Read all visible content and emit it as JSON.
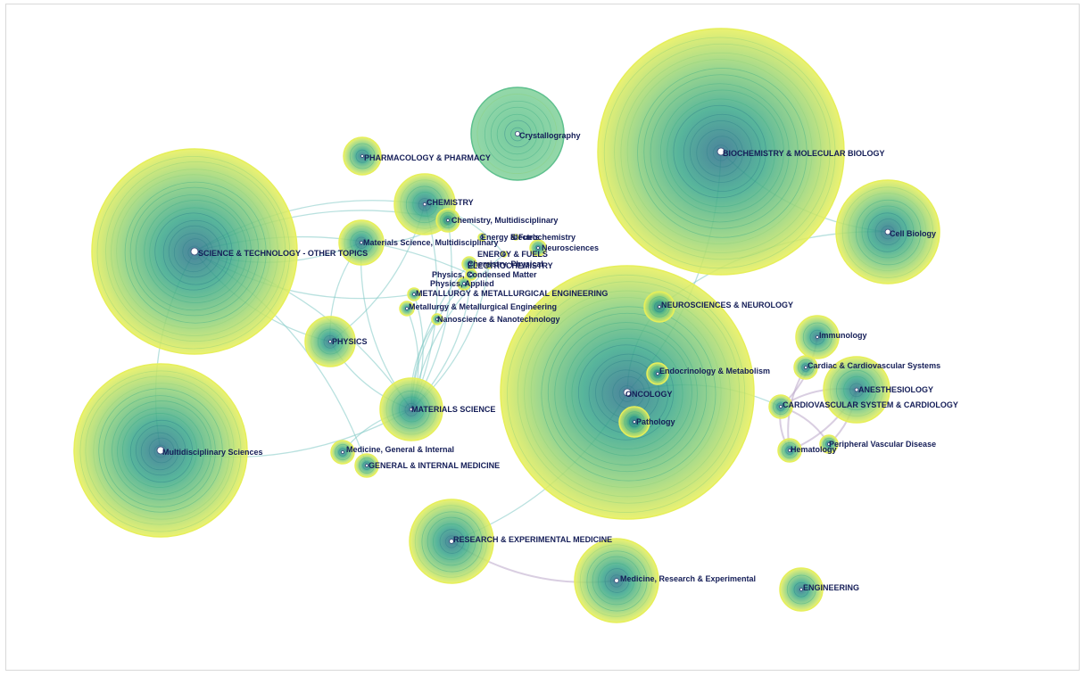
{
  "colors": {
    "outer_ring": "#e6ef5a",
    "mid_ring": "#8fd17a",
    "inner_ring": "#3fae86",
    "core": "#2c7f8a",
    "crystallography_fill": "#7fd2a0",
    "edge_teal": "#7fc9c4",
    "edge_purple": "#b9a6c9",
    "label": "#141d57"
  },
  "nodes": [
    {
      "key": "biochem",
      "label": "BIOCHEMISTRY & MOLECULAR BIOLOGY",
      "icon": "cluster-node"
    },
    {
      "key": "oncology",
      "label": "ONCOLOGY",
      "icon": "cluster-node"
    },
    {
      "key": "scitech",
      "label": "SCIENCE & TECHNOLOGY - OTHER TOPICS",
      "icon": "cluster-node"
    },
    {
      "key": "multisci",
      "label": "Multidisciplinary Sciences",
      "icon": "cluster-node"
    },
    {
      "key": "crystal",
      "label": "Crystallography",
      "icon": "cluster-node"
    },
    {
      "key": "cellbio",
      "label": "Cell Biology",
      "icon": "cluster-node"
    },
    {
      "key": "pharma",
      "label": "PHARMACOLOGY & PHARMACY",
      "icon": "cluster-node"
    },
    {
      "key": "chemistry",
      "label": "CHEMISTRY",
      "icon": "cluster-node"
    },
    {
      "key": "chemmulti",
      "label": "Chemistry, Multidisciplinary",
      "icon": "cluster-node"
    },
    {
      "key": "matscimulti",
      "label": "Materials Science, Multidisciplinary",
      "icon": "cluster-node"
    },
    {
      "key": "energyfuels2",
      "label": "Energy & Fuels",
      "icon": "cluster-node"
    },
    {
      "key": "electrochem",
      "label": "Electrochemistry",
      "icon": "cluster-node"
    },
    {
      "key": "neurosci",
      "label": "Neurosciences",
      "icon": "cluster-node"
    },
    {
      "key": "energyfuels",
      "label": "ENERGY & FUELS",
      "icon": "cluster-node"
    },
    {
      "key": "chemphys",
      "label": "Chemistry, Physical",
      "icon": "cluster-node"
    },
    {
      "key": "electrochemU",
      "label": "ELECTROCHEMISTRY",
      "icon": "cluster-node"
    },
    {
      "key": "physcond",
      "label": "Physics, Condensed Matter",
      "icon": "cluster-node"
    },
    {
      "key": "physapplied",
      "label": "Physics, Applied",
      "icon": "cluster-node"
    },
    {
      "key": "metallurgyU",
      "label": "METALLURGY & METALLURGICAL ENGINEERING",
      "icon": "cluster-node"
    },
    {
      "key": "metallurgy",
      "label": "Metallurgy & Metallurgical Engineering",
      "icon": "cluster-node"
    },
    {
      "key": "nano",
      "label": "Nanoscience & Nanotechnology",
      "icon": "cluster-node"
    },
    {
      "key": "physics",
      "label": "PHYSICS",
      "icon": "cluster-node"
    },
    {
      "key": "neurology",
      "label": "NEUROSCIENCES & NEUROLOGY",
      "icon": "cluster-node"
    },
    {
      "key": "immunology",
      "label": "Immunology",
      "icon": "cluster-node"
    },
    {
      "key": "endocrin",
      "label": "Endocrinology & Metabolism",
      "icon": "cluster-node"
    },
    {
      "key": "cardiac",
      "label": "Cardiac & Cardiovascular Systems",
      "icon": "cluster-node"
    },
    {
      "key": "anesth",
      "label": "ANESTHESIOLOGY",
      "icon": "cluster-node"
    },
    {
      "key": "cardio",
      "label": "CARDIOVASCULAR SYSTEM & CARDIOLOGY",
      "icon": "cluster-node"
    },
    {
      "key": "pathology",
      "label": "Pathology",
      "icon": "cluster-node"
    },
    {
      "key": "matsci",
      "label": "MATERIALS SCIENCE",
      "icon": "cluster-node"
    },
    {
      "key": "medgen",
      "label": "Medicine, General & Internal",
      "icon": "cluster-node"
    },
    {
      "key": "genmed",
      "label": "GENERAL & INTERNAL MEDICINE",
      "icon": "cluster-node"
    },
    {
      "key": "hemat",
      "label": "Hematology",
      "icon": "cluster-node"
    },
    {
      "key": "periph",
      "label": "Peripheral Vascular Disease",
      "icon": "cluster-node"
    },
    {
      "key": "research",
      "label": "RESEARCH & EXPERIMENTAL MEDICINE",
      "icon": "cluster-node"
    },
    {
      "key": "medresearch",
      "label": "Medicine, Research & Experimental",
      "icon": "cluster-node"
    },
    {
      "key": "engineering",
      "label": "ENGINEERING",
      "icon": "cluster-node"
    }
  ],
  "links": [
    [
      "scitech",
      "matscimulti"
    ],
    [
      "scitech",
      "chemistry"
    ],
    [
      "scitech",
      "physics"
    ],
    [
      "scitech",
      "matsci"
    ],
    [
      "scitech",
      "multisci"
    ],
    [
      "scitech",
      "physcond"
    ],
    [
      "scitech",
      "metallurgyU"
    ],
    [
      "scitech",
      "chemmulti"
    ],
    [
      "matscimulti",
      "matsci"
    ],
    [
      "chemistry",
      "matsci"
    ],
    [
      "physics",
      "matsci"
    ],
    [
      "physcond",
      "matsci"
    ],
    [
      "physapplied",
      "matsci"
    ],
    [
      "metallurgyU",
      "matsci"
    ],
    [
      "nano",
      "matsci"
    ],
    [
      "chemmulti",
      "matsci"
    ],
    [
      "matscimulti",
      "physics"
    ],
    [
      "chemistry",
      "physics"
    ],
    [
      "chemphys",
      "matsci"
    ],
    [
      "electrochemU",
      "matsci"
    ],
    [
      "energyfuels",
      "matsci"
    ],
    [
      "metallurgy",
      "matsci"
    ],
    [
      "matscimulti",
      "chemmulti"
    ],
    [
      "chemistry",
      "energyfuels"
    ],
    [
      "biochem",
      "cellbio"
    ],
    [
      "biochem",
      "oncology"
    ],
    [
      "neurology",
      "oncology"
    ],
    [
      "immunology",
      "cardio"
    ],
    [
      "anesth",
      "cardio"
    ],
    [
      "anesth",
      "hemat"
    ],
    [
      "cardiac",
      "hemat"
    ],
    [
      "cardio",
      "periph"
    ],
    [
      "cardio",
      "hemat"
    ],
    [
      "anesth",
      "periph"
    ],
    [
      "research",
      "medresearch"
    ],
    [
      "oncology",
      "cardio"
    ],
    [
      "matsci",
      "medgen"
    ],
    [
      "scitech",
      "genmed"
    ],
    [
      "multisci",
      "matsci"
    ],
    [
      "oncology",
      "research"
    ],
    [
      "cellbio",
      "neurology"
    ]
  ]
}
